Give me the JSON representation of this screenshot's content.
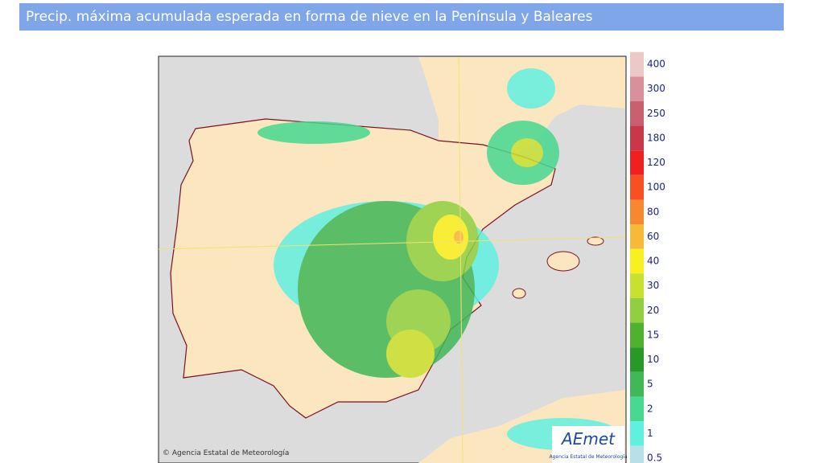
{
  "header": {
    "title": "Precip. máxima acumulada esperada en forma de nieve en la Península y Baleares"
  },
  "map": {
    "copyright": "© Agencia Estatal de Meteorología",
    "logo": "AEmet",
    "logo_subtitle": "Agencia Estatal de Meteorología"
  },
  "legend": [
    {
      "label": 400,
      "color": "#ecc8c8"
    },
    {
      "label": 300,
      "color": "#d9909a"
    },
    {
      "label": 250,
      "color": "#c86070"
    },
    {
      "label": 180,
      "color": "#c83848"
    },
    {
      "label": 120,
      "color": "#f02020"
    },
    {
      "label": 100,
      "color": "#f85020"
    },
    {
      "label": 80,
      "color": "#f88830"
    },
    {
      "label": 60,
      "color": "#f8b838"
    },
    {
      "label": 40,
      "color": "#f8f020"
    },
    {
      "label": 30,
      "color": "#c8e030"
    },
    {
      "label": 20,
      "color": "#90d040"
    },
    {
      "label": 15,
      "color": "#50b030"
    },
    {
      "label": 10,
      "color": "#289828"
    },
    {
      "label": 5,
      "color": "#40b858"
    },
    {
      "label": 2,
      "color": "#48d890"
    },
    {
      "label": 1,
      "color": "#60f0e0"
    },
    {
      "label": 0.5,
      "color": "#b8e0e8"
    }
  ]
}
